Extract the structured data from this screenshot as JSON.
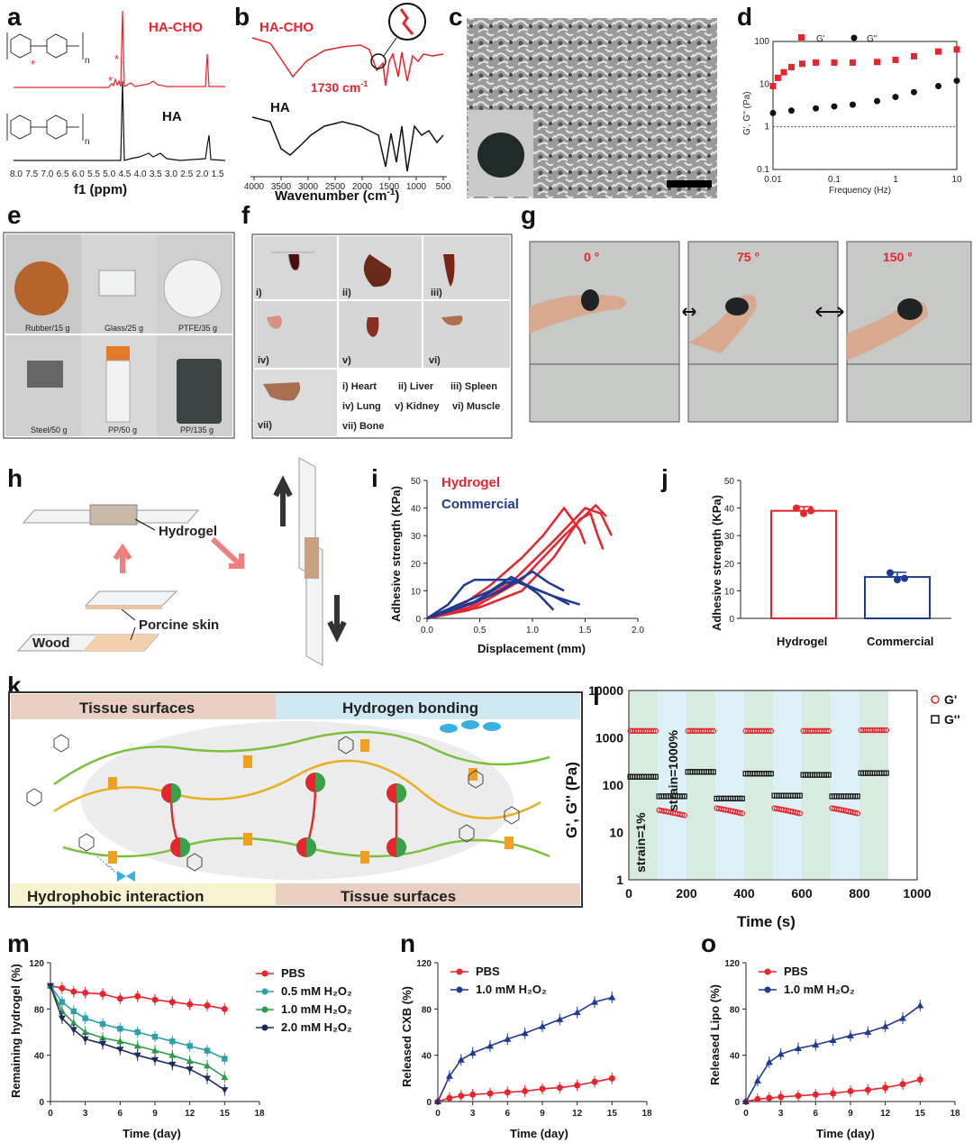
{
  "panels": [
    "a",
    "b",
    "c",
    "d",
    "e",
    "f",
    "g",
    "h",
    "i",
    "j",
    "k",
    "l",
    "m",
    "n",
    "o"
  ],
  "a": {
    "top_label": "HA-CHO",
    "bottom_label": "HA",
    "xlabel": "f1 (ppm)",
    "ticks": [
      "8.0",
      "7.5",
      "7.0",
      "6.5",
      "6.0",
      "5.5",
      "5.0",
      "4.5",
      "4.0",
      "3.5",
      "3.0",
      "2.5",
      "2.0",
      "1.5"
    ],
    "mark": "*",
    "n": "n"
  },
  "b": {
    "top_label": "HA-CHO",
    "bottom_label": "HA",
    "peak_label": "1730 cm",
    "peak_sup": "-1",
    "xlabel": "Wavenumber (cm",
    "xlabel_sup": "-1",
    "xlabel_end": ")",
    "ticks": [
      "4000",
      "3500",
      "3000",
      "2500",
      "2000",
      "1500",
      "1000",
      "500"
    ]
  },
  "d": {
    "legend": [
      "G'",
      "G''"
    ],
    "ylabel": "G', G'' (Pa)",
    "xlabel": "Frequency (Hz)",
    "yticks": [
      "0.1",
      "1",
      "10",
      "100"
    ],
    "xticks": [
      "0.01",
      "0.1",
      "1",
      "10"
    ],
    "chart_data": {
      "type": "scatter",
      "x_log": true,
      "y_log": true,
      "xlim": [
        0.01,
        10
      ],
      "ylim": [
        0.1,
        100
      ],
      "series": [
        {
          "name": "G'",
          "color": "#e8242c",
          "points": [
            [
              0.01,
              9
            ],
            [
              0.012,
              14
            ],
            [
              0.015,
              19
            ],
            [
              0.02,
              25
            ],
            [
              0.03,
              30
            ],
            [
              0.05,
              32
            ],
            [
              0.1,
              32
            ],
            [
              0.2,
              32
            ],
            [
              0.5,
              33
            ],
            [
              1,
              37
            ],
            [
              2,
              45
            ],
            [
              5,
              58
            ],
            [
              10,
              65
            ]
          ]
        },
        {
          "name": "G''",
          "color": "#111111",
          "points": [
            [
              0.01,
              2.1
            ],
            [
              0.02,
              2.4
            ],
            [
              0.05,
              2.7
            ],
            [
              0.1,
              3.0
            ],
            [
              0.2,
              3.3
            ],
            [
              0.5,
              4
            ],
            [
              1,
              5
            ],
            [
              2,
              6.5
            ],
            [
              5,
              9
            ],
            [
              10,
              12
            ]
          ]
        }
      ]
    }
  },
  "e": {
    "captions": [
      "Rubber/15 g",
      "Glass/25 g",
      "PTFE/35 g",
      "Steel/50 g",
      "PP/50 g",
      "PP/135 g"
    ]
  },
  "f": {
    "roman": [
      "i)",
      "ii)",
      "iii)",
      "iv)",
      "v)",
      "vi)",
      "vii)"
    ],
    "legend": [
      "i) Heart",
      "ii) Liver",
      "iii) Spleen",
      "iv) Lung",
      "v) Kidney",
      "vi) Muscle",
      "vii) Bone"
    ]
  },
  "g": {
    "angles": [
      "0 °",
      "75 °",
      "150 °"
    ]
  },
  "h": {
    "hydrogel": "Hydrogel",
    "porcine": "Porcine skin",
    "wood": "Wood"
  },
  "i": {
    "legend": [
      "Hydrogel",
      "Commercial"
    ],
    "ylabel": "Adhesive strength (KPa)",
    "xlabel": "Displacement (mm)",
    "yticks": [
      "0",
      "10",
      "20",
      "30",
      "40",
      "50"
    ],
    "xticks": [
      "0.0",
      "0.5",
      "1.0",
      "1.5",
      "2.0"
    ],
    "chart_data": {
      "type": "line",
      "xlim": [
        0,
        2
      ],
      "ylim": [
        0,
        50
      ],
      "series": [
        {
          "name": "Hydrogel",
          "color": "#e8242c",
          "values": [
            [
              0,
              0
            ],
            [
              0.3,
              4
            ],
            [
              0.6,
              12
            ],
            [
              0.9,
              22
            ],
            [
              1.1,
              30
            ],
            [
              1.3,
              40
            ],
            [
              1.45,
              32
            ],
            [
              1.5,
              27
            ]
          ]
        },
        {
          "name": "Hydrogel",
          "color": "#e8242c",
          "values": [
            [
              0,
              0
            ],
            [
              0.4,
              4
            ],
            [
              0.8,
              13
            ],
            [
              1.2,
              28
            ],
            [
              1.5,
              40
            ],
            [
              1.65,
              38
            ],
            [
              1.75,
              30
            ]
          ]
        },
        {
          "name": "Hydrogel",
          "color": "#e8242c",
          "values": [
            [
              0,
              0
            ],
            [
              0.4,
              3
            ],
            [
              0.9,
              14
            ],
            [
              1.3,
              30
            ],
            [
              1.6,
              41
            ],
            [
              1.7,
              37
            ]
          ]
        },
        {
          "name": "Hydrogel",
          "color": "#e8242c",
          "values": [
            [
              0,
              0
            ],
            [
              0.5,
              4
            ],
            [
              0.9,
              10
            ],
            [
              1.2,
              22
            ],
            [
              1.45,
              36
            ],
            [
              1.55,
              38
            ],
            [
              1.62,
              30
            ],
            [
              1.67,
              25
            ]
          ]
        },
        {
          "name": "Commercial",
          "color": "#1f3a93",
          "values": [
            [
              0,
              0
            ],
            [
              0.2,
              5
            ],
            [
              0.35,
              12
            ],
            [
              0.45,
              14
            ],
            [
              0.8,
              14
            ],
            [
              1.0,
              11
            ],
            [
              1.2,
              8
            ],
            [
              1.35,
              5
            ]
          ]
        },
        {
          "name": "Commercial",
          "color": "#1f3a93",
          "values": [
            [
              0,
              0
            ],
            [
              0.3,
              5
            ],
            [
              0.6,
              10
            ],
            [
              0.8,
              15
            ],
            [
              0.95,
              12
            ],
            [
              1.2,
              8
            ],
            [
              1.45,
              5
            ]
          ]
        },
        {
          "name": "Commercial",
          "color": "#1f3a93",
          "values": [
            [
              0,
              0
            ],
            [
              0.4,
              5
            ],
            [
              0.7,
              10
            ],
            [
              1.0,
              17
            ],
            [
              1.15,
              13
            ],
            [
              1.3,
              10
            ]
          ]
        },
        {
          "name": "Commercial",
          "color": "#1f3a93",
          "values": [
            [
              0,
              0
            ],
            [
              0.45,
              6
            ],
            [
              0.75,
              13
            ],
            [
              0.9,
              13
            ],
            [
              1.05,
              9
            ],
            [
              1.2,
              3
            ]
          ]
        }
      ]
    }
  },
  "j": {
    "ylabel": "Adhesive strength (KPa)",
    "yticks": [
      "0",
      "10",
      "20",
      "30",
      "40",
      "50"
    ],
    "categories": [
      "Hydrogel",
      "Commercial"
    ],
    "chart_data": {
      "type": "bar",
      "categories": [
        "Hydrogel",
        "Commercial"
      ],
      "values": [
        39,
        15
      ],
      "errors": [
        1.5,
        1.7
      ],
      "colors": [
        "#e8242c",
        "#1f3a93"
      ],
      "ylim": [
        0,
        50
      ],
      "points": [
        [
          40,
          38,
          39
        ],
        [
          16.5,
          14,
          14.5
        ]
      ]
    }
  },
  "k": {
    "tissue_tl": "Tissue surfaces",
    "hbond": "Hydrogen bonding",
    "hydrophobic": "Hydrophobic interaction",
    "tissue_br": "Tissue surfaces"
  },
  "l": {
    "legend": [
      "G'",
      "G''"
    ],
    "ylabel": "G', G'' (Pa)",
    "xlabel": "Time (s)",
    "yticks": [
      "1",
      "10",
      "100",
      "1000",
      "10000"
    ],
    "xticks": [
      "0",
      "200",
      "400",
      "600",
      "800",
      "1000"
    ],
    "strain_low": "strain=1%",
    "strain_high": "strain=1000%",
    "chart_data": {
      "type": "scatter",
      "y_log": true,
      "xlim": [
        0,
        1000
      ],
      "ylim": [
        1,
        10000
      ],
      "series": [
        {
          "name": "G'",
          "color": "#e8242c",
          "segments": [
            [
              0,
              100,
              1400
            ],
            [
              100,
              200,
              30
            ],
            [
              200,
              300,
              1400
            ],
            [
              300,
              400,
              33
            ],
            [
              400,
              500,
              1400
            ],
            [
              500,
              600,
              33
            ],
            [
              600,
              700,
              1400
            ],
            [
              700,
              800,
              33
            ],
            [
              800,
              900,
              1450
            ]
          ]
        },
        {
          "name": "G''",
          "color": "#111111",
          "segments": [
            [
              0,
              100,
              150
            ],
            [
              100,
              200,
              58
            ],
            [
              200,
              300,
              190
            ],
            [
              300,
              400,
              52
            ],
            [
              400,
              500,
              175
            ],
            [
              500,
              600,
              60
            ],
            [
              600,
              700,
              165
            ],
            [
              700,
              800,
              58
            ],
            [
              800,
              900,
              180
            ]
          ]
        }
      ]
    }
  },
  "m": {
    "legend": [
      "PBS",
      "0.5 mM H₂O₂",
      "1.0 mM H₂O₂",
      "2.0 mM H₂O₂"
    ],
    "ylabel": "Remaining hydrogel (%)",
    "xlabel": "Time (day)",
    "yticks": [
      "0",
      "40",
      "80",
      "120"
    ],
    "xticks": [
      "0",
      "3",
      "6",
      "9",
      "12",
      "15",
      "18"
    ],
    "chart_data": {
      "type": "line",
      "xlim": [
        0,
        18
      ],
      "ylim": [
        0,
        120
      ],
      "x": [
        0,
        1,
        2,
        3,
        4.5,
        6,
        7.5,
        9,
        10.5,
        12,
        13.5,
        15
      ],
      "series": [
        {
          "name": "PBS",
          "color": "#e8242c",
          "values": [
            100,
            98,
            95,
            94,
            93,
            89,
            91,
            88,
            86,
            84,
            83,
            80
          ]
        },
        {
          "name": "0.5 mM H2O2",
          "color": "#2aa0a8",
          "values": [
            100,
            86,
            78,
            72,
            67,
            63,
            60,
            56,
            52,
            48,
            44,
            37
          ]
        },
        {
          "name": "1.0 mM H2O2",
          "color": "#2e9a4a",
          "values": [
            100,
            78,
            68,
            60,
            55,
            52,
            48,
            44,
            40,
            35,
            31,
            21
          ]
        },
        {
          "name": "2.0 mM H2O2",
          "color": "#1f2a5e",
          "values": [
            100,
            72,
            62,
            54,
            50,
            45,
            40,
            36,
            32,
            28,
            20,
            10
          ]
        }
      ]
    }
  },
  "n": {
    "legend": [
      "PBS",
      "1.0 mM H₂O₂"
    ],
    "ylabel": "Released CXB (%)",
    "xlabel": "Time (day)",
    "yticks": [
      "0",
      "40",
      "80",
      "120"
    ],
    "xticks": [
      "0",
      "3",
      "6",
      "9",
      "12",
      "15",
      "18"
    ],
    "chart_data": {
      "type": "line",
      "xlim": [
        0,
        18
      ],
      "ylim": [
        0,
        120
      ],
      "x": [
        0,
        1,
        2,
        3,
        4.5,
        6,
        7.5,
        9,
        10.5,
        12,
        13.5,
        15
      ],
      "series": [
        {
          "name": "PBS",
          "color": "#e8242c",
          "values": [
            0,
            3,
            5,
            6,
            7,
            8,
            9,
            11,
            12,
            14,
            17,
            20
          ]
        },
        {
          "name": "1.0 mM H2O2",
          "color": "#1f3a93",
          "values": [
            0,
            22,
            36,
            42,
            48,
            54,
            59,
            65,
            71,
            77,
            86,
            90
          ]
        }
      ]
    }
  },
  "o": {
    "legend": [
      "PBS",
      "1.0 mM H₂O₂"
    ],
    "ylabel": "Released Lipo (%)",
    "xlabel": "Time (day)",
    "yticks": [
      "0",
      "40",
      "80",
      "120"
    ],
    "xticks": [
      "0",
      "3",
      "6",
      "9",
      "12",
      "15",
      "18"
    ],
    "chart_data": {
      "type": "line",
      "xlim": [
        0,
        18
      ],
      "ylim": [
        0,
        120
      ],
      "x": [
        0,
        1,
        2,
        3,
        4.5,
        6,
        7.5,
        9,
        10.5,
        12,
        13.5,
        15
      ],
      "series": [
        {
          "name": "PBS",
          "color": "#e8242c",
          "values": [
            0,
            2,
            3,
            4,
            5,
            6,
            7,
            9,
            10,
            12,
            15,
            19
          ]
        },
        {
          "name": "1.0 mM H2O2",
          "color": "#1f3a93",
          "values": [
            0,
            18,
            34,
            41,
            46,
            49,
            53,
            57,
            60,
            65,
            72,
            83
          ]
        }
      ]
    }
  }
}
